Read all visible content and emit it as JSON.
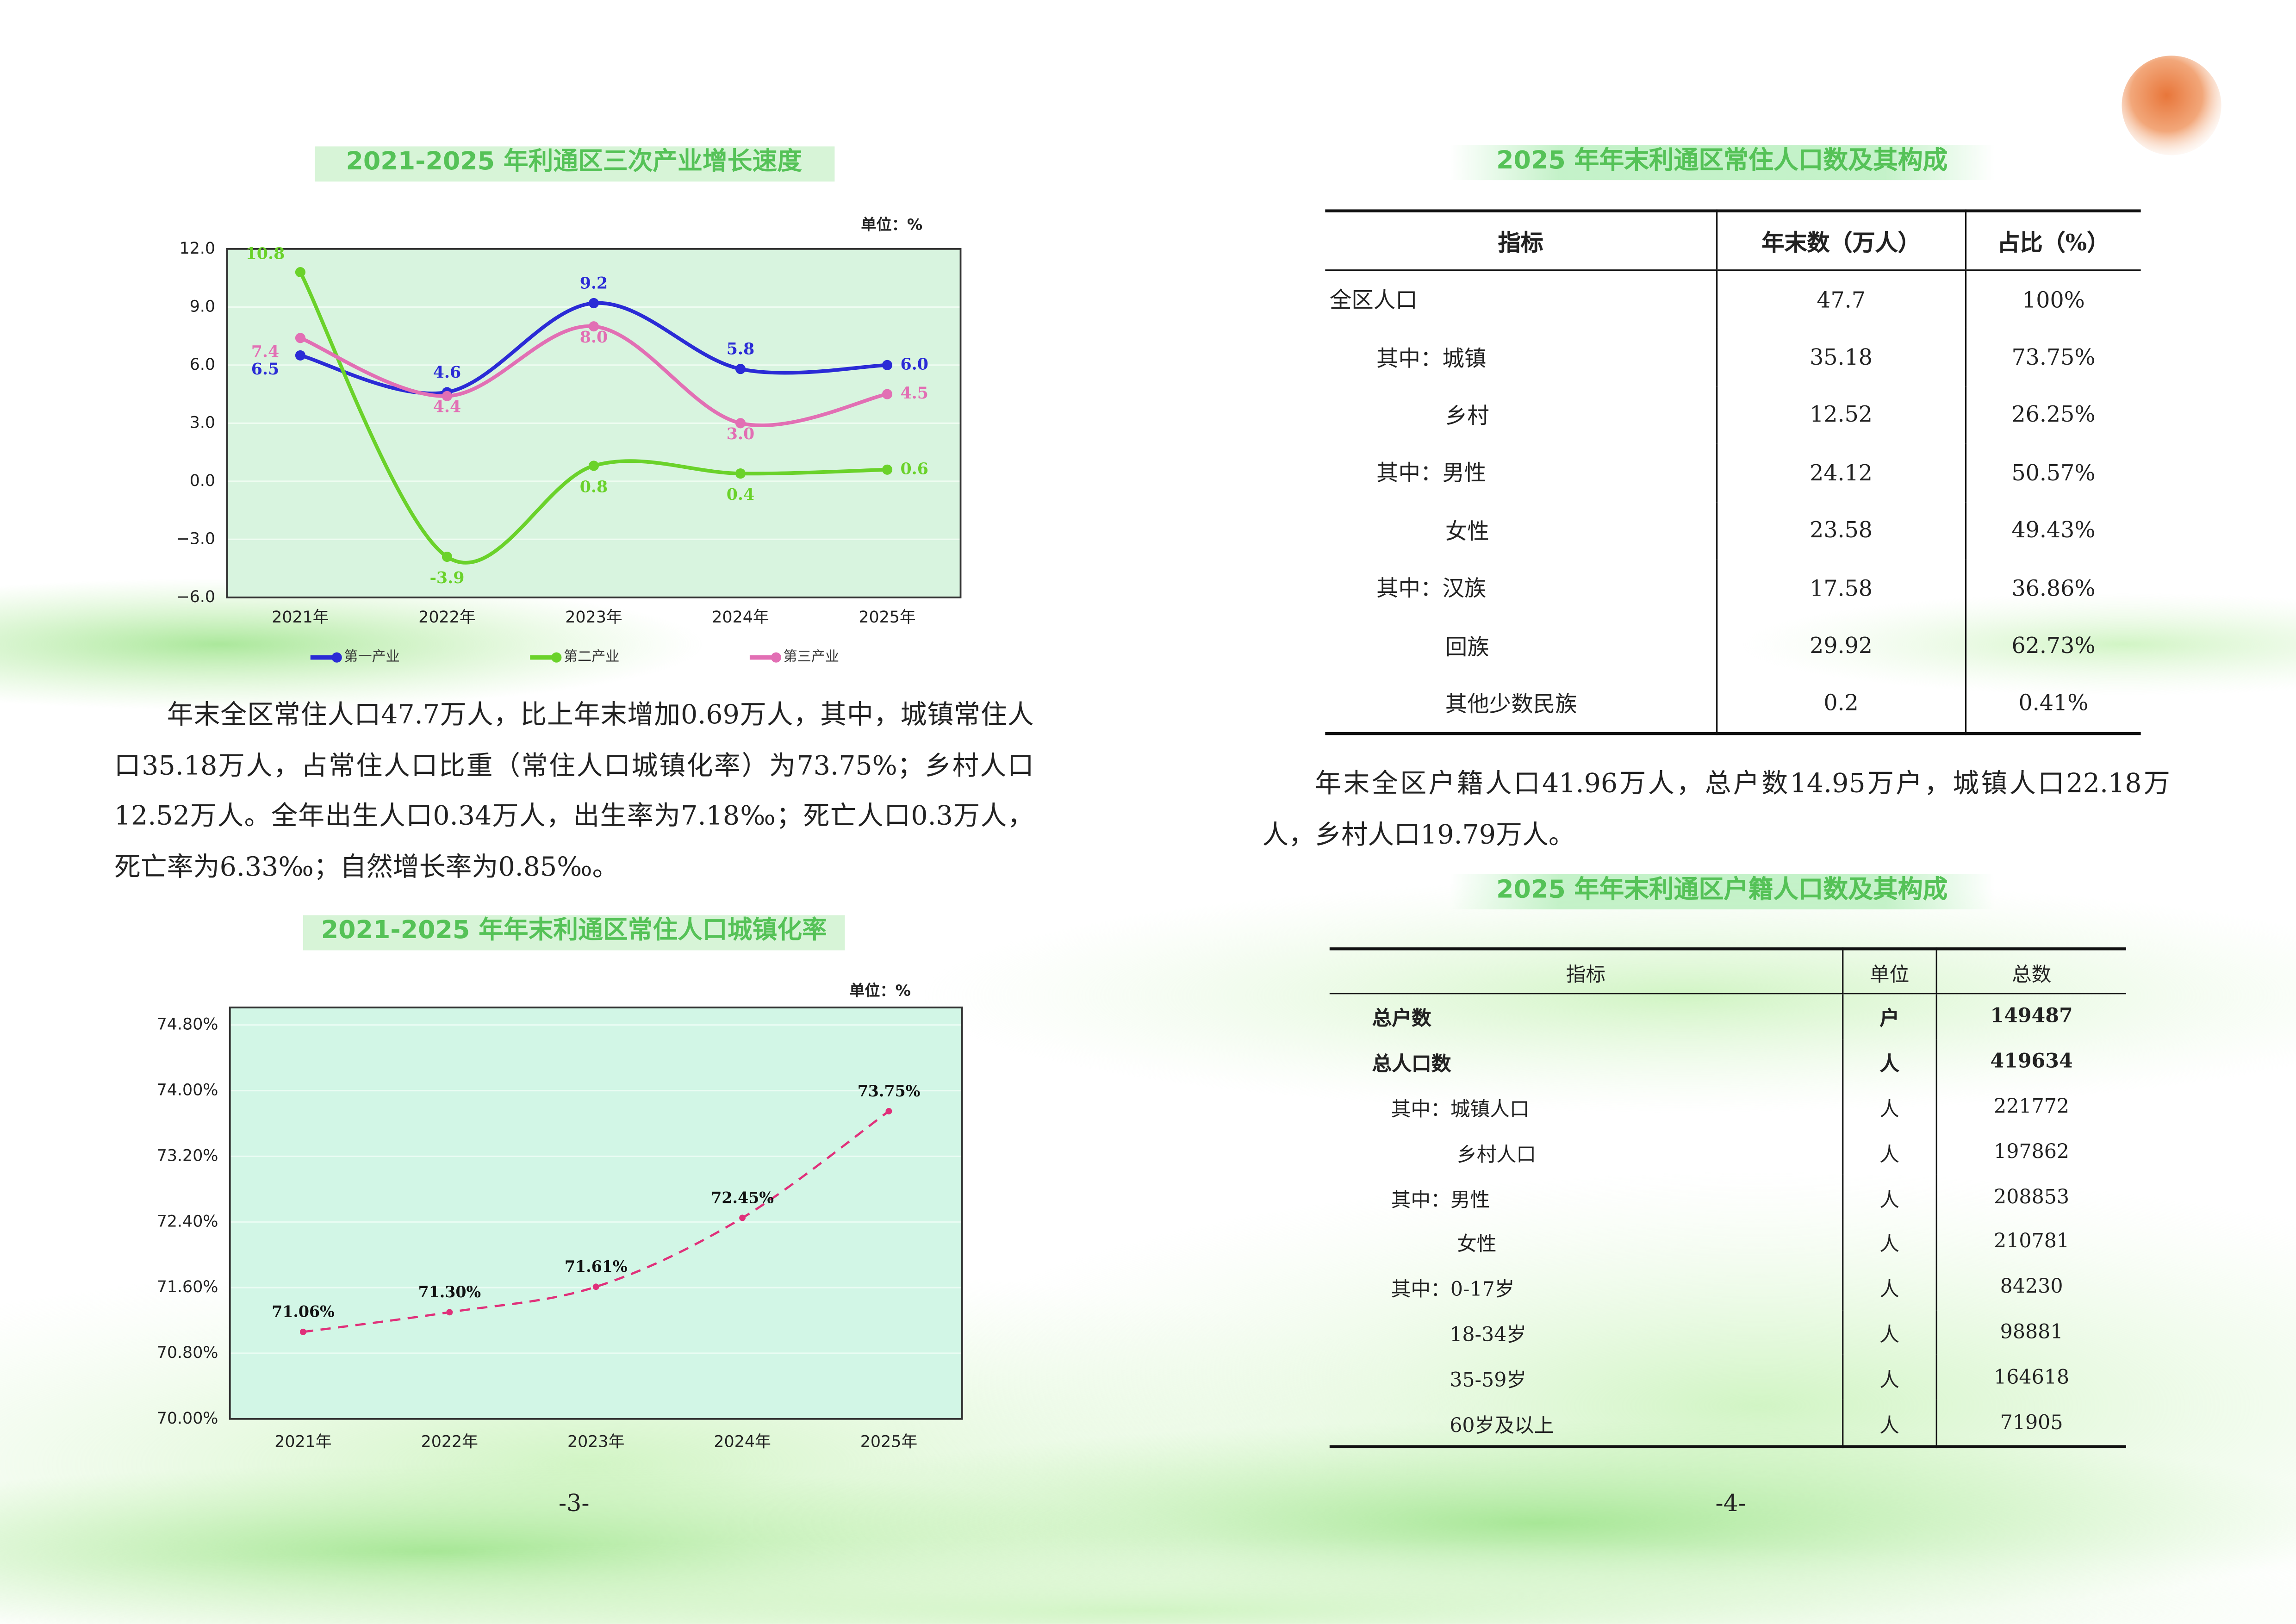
{
  "chart_data": [
    {
      "type": "line",
      "title": "2021-2025 年利通区三次产业增长速度",
      "unit": "单位：%",
      "categories": [
        "2021年",
        "2022年",
        "2023年",
        "2024年",
        "2025年"
      ],
      "series": [
        {
          "name": "第一产业",
          "color": "#2b2bd6",
          "values": [
            6.5,
            4.6,
            9.2,
            5.8,
            6.0
          ],
          "value_labels": [
            "6.5",
            "4.6",
            "9.2",
            "5.8",
            "6.0"
          ]
        },
        {
          "name": "第二产业",
          "color": "#6ad22a",
          "values": [
            10.8,
            -3.9,
            0.8,
            0.4,
            0.6
          ],
          "value_labels": [
            "10.8",
            "-3.9",
            "0.8",
            "0.4",
            "0.6"
          ]
        },
        {
          "name": "第三产业",
          "color": "#e26fb4",
          "values": [
            7.4,
            4.4,
            8.0,
            3.0,
            4.5
          ],
          "value_labels": [
            "7.4",
            "4.4",
            "8.0",
            "3.0",
            "4.5"
          ]
        }
      ],
      "ylim": [
        -6,
        12
      ],
      "yticks": [
        {
          "value": -6,
          "label": "−6.0"
        },
        {
          "value": -3,
          "label": "−3.0"
        },
        {
          "value": 0,
          "label": "0.0"
        },
        {
          "value": 3,
          "label": "3.0"
        },
        {
          "value": 6,
          "label": "6.0"
        },
        {
          "value": 9,
          "label": "9.0"
        },
        {
          "value": 12,
          "label": "12.0"
        }
      ],
      "grid": true,
      "smooth": true,
      "legend": "bottom"
    },
    {
      "type": "line",
      "title": "2021-2025 年年末利通区常住人口城镇化率",
      "unit": "单位：%",
      "categories": [
        "2021年",
        "2022年",
        "2023年",
        "2024年",
        "2025年"
      ],
      "values": [
        71.06,
        71.3,
        71.61,
        72.45,
        73.75
      ],
      "value_labels": [
        "71.06%",
        "71.30%",
        "71.61%",
        "72.45%",
        "73.75%"
      ],
      "color": "#e0307a",
      "line_style": "dashed",
      "smooth": true,
      "ylim": [
        70,
        74.8
      ],
      "yticks": [
        {
          "value": 70,
          "label": "70.00%"
        },
        {
          "value": 70.8,
          "label": "70.80%"
        },
        {
          "value": 71.6,
          "label": "71.60%"
        },
        {
          "value": 72.4,
          "label": "72.40%"
        },
        {
          "value": 73.2,
          "label": "73.20%"
        },
        {
          "value": 74,
          "label": "74.00%"
        },
        {
          "value": 74.8,
          "label": "74.80%"
        }
      ],
      "grid": true
    }
  ],
  "left_paragraph": "年末全区常住人口47.7万人，比上年末增加0.69万人，其中，城镇常住人口35.18万人，占常住人口比重（常住人口城镇化率）为73.75%；乡村人口12.52万人。全年出生人口0.34万人，出生率为7.18‰；死亡人口0.3万人，死亡率为6.33‰；自然增长率为0.85‰。",
  "table1": {
    "title": "2025 年年末利通区常住人口数及其构成",
    "header": [
      "指标",
      "年末数（万人）",
      "占比（%）"
    ],
    "rows": [
      [
        "全区人口",
        "47.7",
        "100%"
      ],
      [
        "其中：城镇",
        "35.18",
        "73.75%"
      ],
      [
        "乡村",
        "12.52",
        "26.25%"
      ],
      [
        "其中：男性",
        "24.12",
        "50.57%"
      ],
      [
        "女性",
        "23.58",
        "49.43%"
      ],
      [
        "其中：汉族",
        "17.58",
        "36.86%"
      ],
      [
        "回族",
        "29.92",
        "62.73%"
      ],
      [
        "其他少数民族",
        "0.2",
        "0.41%"
      ]
    ]
  },
  "right_paragraph": "年末全区户籍人口41.96万人，总户数14.95万户，城镇人口22.18万人，乡村人口19.79万人。",
  "table2": {
    "title": "2025 年年末利通区户籍人口数及其构成",
    "header": [
      "指标",
      "单位",
      "总数"
    ],
    "rows": [
      [
        "总户数",
        "户",
        "149487"
      ],
      [
        "总人口数",
        "人",
        "419634"
      ],
      [
        "其中：城镇人口",
        "人",
        "221772"
      ],
      [
        "乡村人口",
        "人",
        "197862"
      ],
      [
        "其中：男性",
        "人",
        "208853"
      ],
      [
        "女性",
        "人",
        "210781"
      ],
      [
        "其中：0-17岁",
        "人",
        "84230"
      ],
      [
        "18-34岁",
        "人",
        "98881"
      ],
      [
        "35-59岁",
        "人",
        "164618"
      ],
      [
        "60岁及以上",
        "人",
        "71905"
      ]
    ]
  },
  "page_numbers": [
    "-3-",
    "-4-"
  ]
}
